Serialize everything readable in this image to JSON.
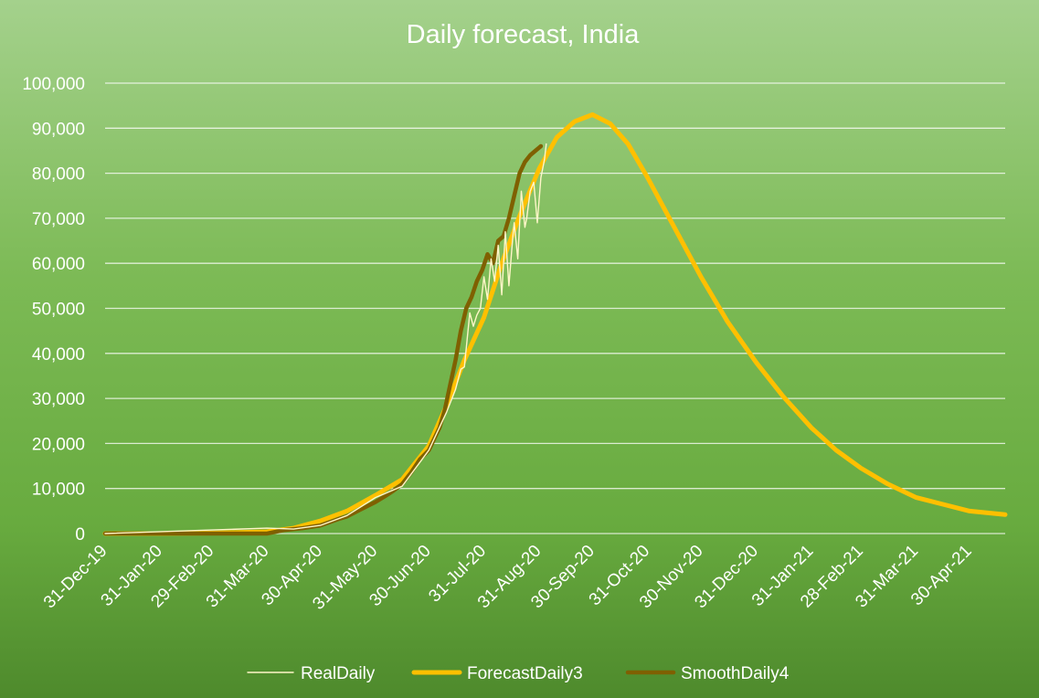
{
  "chart_data": {
    "type": "line",
    "title": "Daily forecast, India",
    "xlabel": "",
    "ylabel": "",
    "x_axis": {
      "start": "2019-12-31",
      "end": "2021-05-20",
      "tick_labels": [
        "31-Dec-19",
        "31-Jan-20",
        "29-Feb-20",
        "31-Mar-20",
        "30-Apr-20",
        "31-May-20",
        "30-Jun-20",
        "31-Jul-20",
        "31-Aug-20",
        "30-Sep-20",
        "31-Oct-20",
        "30-Nov-20",
        "31-Dec-20",
        "31-Jan-21",
        "28-Feb-21",
        "31-Mar-21",
        "30-Apr-21"
      ],
      "tick_dates": [
        "2019-12-31",
        "2020-01-31",
        "2020-02-29",
        "2020-03-31",
        "2020-04-30",
        "2020-05-31",
        "2020-06-30",
        "2020-07-31",
        "2020-08-31",
        "2020-09-30",
        "2020-10-31",
        "2020-11-30",
        "2020-12-31",
        "2021-01-31",
        "2021-02-28",
        "2021-03-31",
        "2021-04-30"
      ]
    },
    "y_axis": {
      "min": 0,
      "max": 100000,
      "ticks": [
        0,
        10000,
        20000,
        30000,
        40000,
        50000,
        60000,
        70000,
        80000,
        90000,
        100000
      ],
      "tick_labels": [
        "0",
        "10,000",
        "20,000",
        "30,000",
        "40,000",
        "50,000",
        "60,000",
        "70,000",
        "80,000",
        "90,000",
        "100,000"
      ]
    },
    "grid": true,
    "legend": {
      "position": "bottom",
      "entries": [
        "RealDaily",
        "ForecastDaily3",
        "SmoothDaily4"
      ]
    },
    "series": [
      {
        "name": "RealDaily",
        "color": "#fff6c8",
        "x": [
          "2019-12-31",
          "2020-03-31",
          "2020-04-15",
          "2020-04-30",
          "2020-05-15",
          "2020-05-31",
          "2020-06-15",
          "2020-06-30",
          "2020-07-10",
          "2020-07-15",
          "2020-07-18",
          "2020-07-20",
          "2020-07-23",
          "2020-07-25",
          "2020-07-27",
          "2020-07-29",
          "2020-07-31",
          "2020-08-02",
          "2020-08-04",
          "2020-08-06",
          "2020-08-08",
          "2020-08-10",
          "2020-08-12",
          "2020-08-14",
          "2020-08-16",
          "2020-08-17",
          "2020-08-19",
          "2020-08-21",
          "2020-08-23",
          "2020-08-24",
          "2020-08-26",
          "2020-08-28",
          "2020-08-30",
          "2020-09-01",
          "2020-09-03",
          "2020-09-04"
        ],
        "values": [
          0,
          1200,
          1000,
          1800,
          4000,
          8000,
          10500,
          18500,
          27000,
          32000,
          36500,
          37000,
          49000,
          46000,
          48500,
          50000,
          57000,
          52000,
          61000,
          56000,
          64000,
          53000,
          67000,
          55000,
          65000,
          69000,
          61000,
          76000,
          68000,
          70000,
          76000,
          78000,
          69000,
          79000,
          83000,
          86500
        ]
      },
      {
        "name": "ForecastDaily3",
        "color": "#ffc000",
        "x": [
          "2019-12-31",
          "2020-01-31",
          "2020-02-29",
          "2020-03-31",
          "2020-04-15",
          "2020-04-30",
          "2020-05-15",
          "2020-05-31",
          "2020-06-15",
          "2020-06-30",
          "2020-07-10",
          "2020-07-20",
          "2020-07-31",
          "2020-08-10",
          "2020-08-20",
          "2020-08-31",
          "2020-09-10",
          "2020-09-20",
          "2020-09-30",
          "2020-10-10",
          "2020-10-20",
          "2020-10-31",
          "2020-11-15",
          "2020-11-30",
          "2020-12-15",
          "2020-12-31",
          "2021-01-15",
          "2021-01-31",
          "2021-02-14",
          "2021-02-28",
          "2021-03-15",
          "2021-03-31",
          "2021-04-15",
          "2021-04-30",
          "2021-05-20"
        ],
        "values": [
          0,
          0,
          100,
          400,
          1200,
          2800,
          5000,
          8500,
          12000,
          19500,
          28500,
          38500,
          48000,
          60000,
          70500,
          81000,
          88000,
          91500,
          93000,
          91000,
          86500,
          79000,
          68000,
          57000,
          47000,
          38000,
          30500,
          23500,
          18500,
          14500,
          11000,
          8000,
          6500,
          5000,
          4200
        ]
      },
      {
        "name": "SmoothDaily4",
        "color": "#7f6000",
        "x": [
          "2019-12-31",
          "2020-01-31",
          "2020-02-29",
          "2020-03-31",
          "2020-04-10",
          "2020-04-20",
          "2020-04-30",
          "2020-05-05",
          "2020-05-10",
          "2020-05-15",
          "2020-05-20",
          "2020-05-25",
          "2020-05-31",
          "2020-06-05",
          "2020-06-10",
          "2020-06-15",
          "2020-06-20",
          "2020-06-25",
          "2020-06-30",
          "2020-07-03",
          "2020-07-06",
          "2020-07-09",
          "2020-07-12",
          "2020-07-15",
          "2020-07-18",
          "2020-07-21",
          "2020-07-24",
          "2020-07-27",
          "2020-07-30",
          "2020-08-02",
          "2020-08-05",
          "2020-08-08",
          "2020-08-11",
          "2020-08-14",
          "2020-08-17",
          "2020-08-20",
          "2020-08-23",
          "2020-08-26",
          "2020-08-29",
          "2020-09-01"
        ],
        "values": [
          0,
          0,
          0,
          0,
          800,
          1200,
          1800,
          2500,
          3200,
          3800,
          4800,
          5800,
          7000,
          8200,
          9500,
          11000,
          13500,
          16500,
          18500,
          21000,
          23500,
          27500,
          33000,
          38500,
          45000,
          50000,
          52500,
          56000,
          58500,
          62000,
          60000,
          65000,
          66000,
          70000,
          75000,
          80000,
          82500,
          84000,
          85000,
          86000
        ]
      }
    ]
  }
}
